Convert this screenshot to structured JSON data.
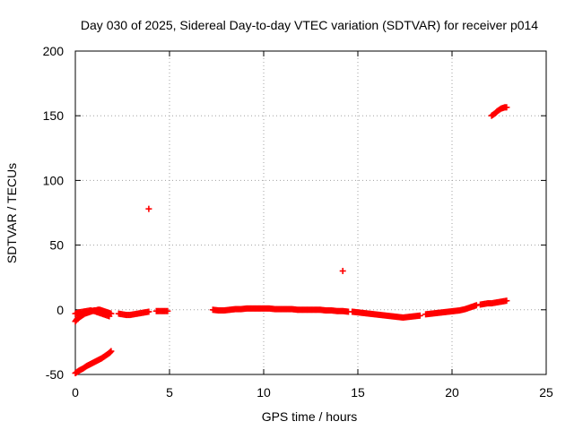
{
  "chart_data": {
    "type": "scatter",
    "title": "Day 030 of 2025, Sidereal Day-to-day VTEC variation (SDTVAR) for receiver p014",
    "xlabel": "GPS time / hours",
    "ylabel": "SDTVAR / TECUs",
    "xlim": [
      0,
      25
    ],
    "ylim": [
      -50,
      200
    ],
    "xticks": [
      "0",
      "5",
      "10",
      "15",
      "20",
      "25"
    ],
    "yticks": [
      "-50",
      "0",
      "50",
      "100",
      "150",
      "200"
    ],
    "grid": true,
    "marker_color": "#ff0000",
    "series": [
      {
        "name": "SDTVAR",
        "segments": [
          {
            "x": [
              0.0,
              0.2,
              0.4,
              0.6,
              0.8,
              1.0,
              1.2,
              1.4,
              1.6,
              1.8,
              1.9
            ],
            "y": [
              -49,
              -47,
              -45.5,
              -43.5,
              -42,
              -40.5,
              -39,
              -37.5,
              -35.5,
              -33.5,
              -32
            ]
          },
          {
            "x": [
              0.0,
              0.1,
              0.2,
              0.3,
              0.4,
              0.5,
              0.6,
              0.7,
              0.8,
              0.9,
              1.0,
              1.1,
              1.2,
              1.3,
              1.4,
              1.5,
              1.6,
              1.7,
              1.8,
              1.9
            ],
            "y": [
              -9,
              -7,
              -6,
              -5,
              -4,
              -3,
              -2.5,
              -2,
              -1.5,
              -1,
              -0.5,
              -0.5,
              0,
              0,
              -0.5,
              -1,
              -1.5,
              -2,
              -2.5,
              -3
            ]
          },
          {
            "x": [
              0.0,
              0.2,
              0.4,
              0.6,
              0.8,
              1.0,
              1.2,
              1.4,
              1.6,
              1.8
            ],
            "y": [
              -3,
              -2,
              -1.5,
              -1,
              -0.5,
              -1,
              -2,
              -3,
              -4,
              -5
            ]
          },
          {
            "x": [
              2.3,
              2.5,
              2.7,
              2.9,
              3.1,
              3.3,
              3.5,
              3.7,
              3.9
            ],
            "y": [
              -3,
              -3.5,
              -4,
              -4,
              -3.5,
              -3,
              -2.5,
              -2,
              -1.5
            ]
          },
          {
            "x": [
              4.3,
              4.5,
              4.7,
              4.9
            ],
            "y": [
              -1,
              -1,
              -1,
              -1
            ]
          },
          {
            "x": [
              3.9
            ],
            "y": [
              78
            ]
          },
          {
            "x": [
              7.3,
              7.6,
              7.9,
              8.2,
              8.5,
              8.8,
              9.1,
              9.4,
              9.7,
              10.0,
              10.3,
              10.6,
              10.9,
              11.2,
              11.5,
              11.8,
              12.1,
              12.4,
              12.7,
              13.0,
              13.3,
              13.6,
              13.9,
              14.2,
              14.5
            ],
            "y": [
              0,
              -0.5,
              -0.5,
              0,
              0.5,
              0.5,
              1,
              1,
              1,
              1,
              1,
              0.5,
              0.5,
              0.5,
              0.5,
              0,
              0,
              0,
              0,
              0,
              -0.5,
              -0.5,
              -1,
              -1,
              -1.5
            ]
          },
          {
            "x": [
              14.2
            ],
            "y": [
              30
            ]
          },
          {
            "x": [
              14.7,
              15.0,
              15.3,
              15.6,
              15.9,
              16.2,
              16.5,
              16.8,
              17.1,
              17.4,
              17.7,
              18.0,
              18.3
            ],
            "y": [
              -1.5,
              -2,
              -2.5,
              -3,
              -3.5,
              -4,
              -4.5,
              -5,
              -5.5,
              -6,
              -5.5,
              -5,
              -4.5
            ]
          },
          {
            "x": [
              18.6,
              18.9,
              19.2,
              19.5,
              19.8,
              20.1,
              20.4,
              20.7,
              21.0,
              21.3
            ],
            "y": [
              -3.5,
              -3,
              -2.5,
              -2,
              -1.5,
              -1,
              -0.5,
              0.5,
              2,
              3.5
            ]
          },
          {
            "x": [
              21.5,
              21.7,
              21.9,
              22.1,
              22.3,
              22.5,
              22.7,
              22.9
            ],
            "y": [
              4,
              4.5,
              5,
              5,
              5.5,
              6,
              6.5,
              7
            ]
          },
          {
            "x": [
              22.1,
              22.2,
              22.3,
              22.4,
              22.5,
              22.6,
              22.7,
              22.8,
              22.9
            ],
            "y": [
              150,
              151,
              152,
              153.5,
              154.5,
              155.5,
              156,
              156.5,
              156.5
            ]
          }
        ]
      }
    ]
  }
}
